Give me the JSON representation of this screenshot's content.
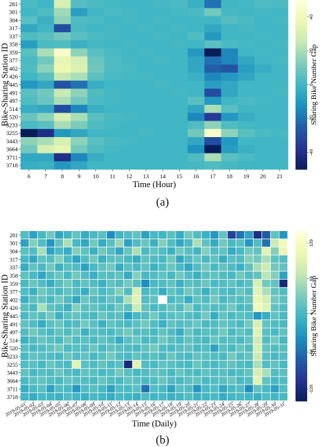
{
  "captions": {
    "a": "(a)",
    "b": "(b)"
  },
  "colormap": [
    "#081d58",
    "#253494",
    "#225ea8",
    "#1d91c0",
    "#41b6c4",
    "#7fcdbb",
    "#c7e9b4",
    "#edf8b1",
    "#ffffd9"
  ],
  "chart_data": [
    {
      "type": "heatmap",
      "id": "a",
      "xlabel": "Time (Hour)",
      "ylabel": "Bike-Sharing Station ID",
      "colorbar_label": "Sharing Bike Number Gap",
      "x": [
        "6",
        "7",
        "8",
        "9",
        "10",
        "11",
        "12",
        "13",
        "14",
        "15",
        "16",
        "17",
        "18",
        "19",
        "20",
        "21"
      ],
      "y": [
        "281",
        "301",
        "304",
        "317",
        "337",
        "358",
        "359",
        "377",
        "402",
        "426",
        "445",
        "491",
        "497",
        "514",
        "520",
        "3233",
        "3255",
        "3443",
        "3664",
        "3711",
        "3718"
      ],
      "vmin": -50,
      "vmax": 50,
      "colorbar_ticks": [
        40,
        20,
        0,
        -20,
        -40
      ],
      "values": [
        [
          2,
          0,
          30,
          4,
          2,
          1,
          0,
          0,
          1,
          2,
          -2,
          -20,
          0,
          1,
          3,
          2
        ],
        [
          0,
          3,
          18,
          -8,
          0,
          2,
          1,
          0,
          0,
          1,
          2,
          10,
          1,
          0,
          1,
          0
        ],
        [
          5,
          -2,
          15,
          3,
          2,
          0,
          1,
          0,
          1,
          0,
          0,
          0,
          4,
          2,
          0,
          1
        ],
        [
          -5,
          0,
          -30,
          2,
          0,
          1,
          0,
          1,
          0,
          1,
          0,
          -5,
          0,
          1,
          0,
          0
        ],
        [
          3,
          5,
          10,
          5,
          2,
          1,
          0,
          0,
          1,
          0,
          3,
          -10,
          0,
          0,
          1,
          0
        ],
        [
          -8,
          2,
          3,
          -2,
          1,
          0,
          1,
          0,
          0,
          1,
          0,
          5,
          2,
          1,
          0,
          1
        ],
        [
          5,
          20,
          45,
          15,
          5,
          2,
          0,
          1,
          0,
          0,
          -10,
          -50,
          -15,
          0,
          1,
          0
        ],
        [
          2,
          10,
          35,
          30,
          8,
          3,
          1,
          0,
          1,
          0,
          -5,
          -20,
          -15,
          -5,
          0,
          1
        ],
        [
          3,
          15,
          38,
          32,
          10,
          3,
          2,
          0,
          0,
          0,
          -5,
          -25,
          -28,
          -8,
          -3,
          0
        ],
        [
          0,
          5,
          25,
          20,
          5,
          2,
          1,
          1,
          0,
          0,
          -2,
          -15,
          -10,
          -5,
          0,
          0
        ],
        [
          -10,
          -5,
          -28,
          -20,
          -3,
          0,
          0,
          0,
          1,
          0,
          0,
          -8,
          -5,
          0,
          0,
          0
        ],
        [
          5,
          10,
          25,
          15,
          3,
          1,
          0,
          0,
          0,
          1,
          0,
          -30,
          -5,
          0,
          0,
          1
        ],
        [
          3,
          8,
          20,
          10,
          2,
          1,
          0,
          0,
          0,
          0,
          5,
          -10,
          0,
          2,
          1,
          0
        ],
        [
          -3,
          -5,
          -30,
          -15,
          -2,
          0,
          0,
          0,
          0,
          0,
          -5,
          20,
          5,
          0,
          0,
          0
        ],
        [
          8,
          15,
          30,
          20,
          5,
          2,
          1,
          0,
          0,
          0,
          -15,
          -35,
          -10,
          -3,
          0,
          0
        ],
        [
          2,
          5,
          20,
          12,
          3,
          1,
          0,
          0,
          0,
          0,
          3,
          15,
          3,
          1,
          0,
          0
        ],
        [
          -50,
          -40,
          -10,
          -5,
          0,
          0,
          0,
          1,
          0,
          0,
          10,
          45,
          15,
          5,
          2,
          1
        ],
        [
          15,
          20,
          30,
          15,
          5,
          2,
          1,
          0,
          0,
          0,
          -5,
          -30,
          -10,
          0,
          0,
          0
        ],
        [
          10,
          30,
          35,
          10,
          3,
          1,
          0,
          0,
          0,
          0,
          -12,
          -50,
          -8,
          -2,
          0,
          0
        ],
        [
          -5,
          -5,
          -40,
          -15,
          -3,
          0,
          0,
          0,
          0,
          0,
          3,
          20,
          5,
          2,
          0,
          0
        ],
        [
          -3,
          -2,
          -10,
          -5,
          0,
          0,
          0,
          0,
          0,
          0,
          1,
          3,
          1,
          0,
          0,
          0
        ]
      ]
    },
    {
      "type": "heatmap",
      "id": "b",
      "xlabel": "Time (Daily)",
      "ylabel": "Bike-Sharing Station ID",
      "colorbar_label": "Sharing Bike Number Gap",
      "x_ticklabels": [
        "2019-05-01",
        "2019-05-02",
        "2019-05-03",
        "2019-05-04",
        "2019-05-05",
        "2019-05-06",
        "2019-05-07",
        "2019-05-08",
        "2019-05-09",
        "2019-05-10",
        "2019-05-11",
        "2019-05-12",
        "2019-05-13",
        "2019-05-14",
        "2019-05-15",
        "2019-05-16",
        "2019-05-17",
        "2019-05-18",
        "2019-05-19",
        "2019-05-20",
        "2019-05-21",
        "2019-05-22",
        "2019-05-23",
        "2019-05-24",
        "2019-05-25",
        "2019-05-26",
        "2019-05-27",
        "2019-05-28",
        "2019-05-29",
        "2019-05-30",
        "2019-05-31"
      ],
      "n_days": 31,
      "y": [
        "281",
        "301",
        "304",
        "317",
        "337",
        "358",
        "359",
        "377",
        "402",
        "426",
        "445",
        "491",
        "497",
        "514",
        "520",
        "3233",
        "3255",
        "3443",
        "3664",
        "3711",
        "3718"
      ],
      "vmin": -150,
      "vmax": 150,
      "colorbar_ticks": [
        129,
        66,
        4,
        -64,
        -129
      ],
      "values": [
        [
          10,
          -20,
          5,
          30,
          -15,
          0,
          20,
          -10,
          5,
          15,
          -40,
          0,
          10,
          20,
          -20,
          5,
          0,
          15,
          -10,
          30,
          10,
          -5,
          -30,
          20,
          -100,
          -60,
          -20,
          -120,
          -80,
          20,
          -30
        ],
        [
          -20,
          40,
          10,
          -30,
          20,
          60,
          5,
          -15,
          30,
          -10,
          15,
          50,
          -20,
          10,
          25,
          -5,
          40,
          10,
          -15,
          5,
          60,
          20,
          -10,
          30,
          5,
          15,
          -30,
          10,
          -60,
          80,
          120
        ],
        [
          15,
          10,
          60,
          -20,
          5,
          -10,
          40,
          20,
          -5,
          30,
          10,
          -15,
          25,
          60,
          5,
          20,
          10,
          -5,
          30,
          15,
          0,
          40,
          10,
          20,
          -10,
          5,
          30,
          20,
          100,
          40,
          110
        ],
        [
          5,
          -15,
          20,
          10,
          40,
          5,
          -20,
          10,
          30,
          -5,
          15,
          20,
          5,
          -10,
          20,
          10,
          5,
          30,
          -15,
          10,
          25,
          5,
          20,
          -10,
          15,
          10,
          40,
          30,
          60,
          20,
          10
        ],
        [
          -10,
          20,
          5,
          30,
          -5,
          15,
          10,
          -20,
          5,
          20,
          30,
          -10,
          15,
          5,
          20,
          -5,
          10,
          25,
          5,
          -15,
          10,
          30,
          5,
          20,
          10,
          -5,
          20,
          60,
          80,
          30,
          20
        ],
        [
          20,
          5,
          -15,
          10,
          25,
          5,
          30,
          10,
          -5,
          15,
          10,
          20,
          -10,
          40,
          5,
          10,
          20,
          5,
          30,
          10,
          -5,
          15,
          20,
          10,
          5,
          30,
          10,
          20,
          70,
          40,
          -20
        ],
        [
          5,
          25,
          10,
          -10,
          15,
          30,
          5,
          20,
          10,
          -5,
          20,
          10,
          30,
          15,
          -40,
          5,
          10,
          20,
          -5,
          15,
          10,
          25,
          5,
          10,
          20,
          5,
          15,
          90,
          30,
          20,
          -130
        ],
        [
          10,
          -5,
          30,
          15,
          5,
          20,
          10,
          -10,
          25,
          5,
          15,
          40,
          10,
          90,
          5,
          15,
          -10,
          20,
          5,
          30,
          15,
          -5,
          20,
          10,
          5,
          25,
          10,
          100,
          60,
          20,
          10
        ],
        [
          -5,
          15,
          20,
          5,
          30,
          10,
          -15,
          25,
          10,
          5,
          20,
          10,
          60,
          100,
          10,
          20,
          150,
          5,
          15,
          -10,
          20,
          10,
          30,
          5,
          15,
          10,
          20,
          110,
          90,
          30,
          15
        ],
        [
          15,
          5,
          60,
          20,
          10,
          -5,
          40,
          15,
          20,
          10,
          5,
          30,
          15,
          80,
          20,
          5,
          10,
          25,
          10,
          40,
          5,
          20,
          10,
          15,
          30,
          5,
          10,
          120,
          100,
          20,
          10
        ],
        [
          5,
          20,
          10,
          30,
          -5,
          15,
          20,
          10,
          5,
          25,
          10,
          15,
          -20,
          5,
          10,
          30,
          5,
          15,
          20,
          10,
          5,
          30,
          -10,
          20,
          5,
          15,
          10,
          -30,
          -10,
          20,
          5
        ],
        [
          20,
          10,
          -10,
          15,
          25,
          5,
          10,
          30,
          15,
          -5,
          20,
          10,
          5,
          15,
          30,
          10,
          -5,
          20,
          10,
          15,
          25,
          5,
          10,
          20,
          15,
          5,
          30,
          90,
          20,
          10,
          5
        ],
        [
          10,
          30,
          15,
          5,
          20,
          10,
          25,
          -5,
          15,
          10,
          5,
          20,
          30,
          10,
          15,
          5,
          20,
          10,
          -10,
          25,
          5,
          15,
          10,
          30,
          5,
          20,
          10,
          100,
          15,
          5,
          20
        ],
        [
          -5,
          10,
          25,
          15,
          5,
          30,
          10,
          15,
          5,
          20,
          10,
          -10,
          15,
          25,
          5,
          10,
          30,
          15,
          5,
          20,
          10,
          5,
          25,
          10,
          15,
          5,
          20,
          80,
          10,
          30,
          5
        ],
        [
          15,
          5,
          10,
          20,
          30,
          5,
          15,
          10,
          25,
          5,
          20,
          15,
          10,
          5,
          20,
          30,
          10,
          5,
          15,
          20,
          5,
          10,
          -20,
          15,
          5,
          25,
          10,
          90,
          20,
          10,
          15
        ],
        [
          5,
          20,
          15,
          10,
          5,
          25,
          10,
          20,
          5,
          15,
          30,
          10,
          5,
          20,
          10,
          15,
          5,
          25,
          10,
          5,
          20,
          15,
          10,
          5,
          30,
          10,
          20,
          80,
          15,
          5,
          10
        ],
        [
          10,
          15,
          5,
          25,
          10,
          5,
          100,
          15,
          10,
          20,
          5,
          15,
          -130,
          100,
          10,
          5,
          20,
          15,
          10,
          5,
          25,
          10,
          5,
          15,
          20,
          10,
          5,
          60,
          10,
          20,
          5
        ],
        [
          20,
          5,
          15,
          10,
          25,
          10,
          5,
          20,
          15,
          5,
          10,
          30,
          15,
          5,
          10,
          20,
          15,
          5,
          25,
          10,
          5,
          20,
          10,
          15,
          5,
          10,
          20,
          90,
          60,
          10,
          15
        ],
        [
          5,
          15,
          20,
          10,
          5,
          20,
          15,
          10,
          5,
          25,
          10,
          5,
          20,
          15,
          5,
          10,
          25,
          10,
          5,
          15,
          20,
          5,
          10,
          15,
          25,
          5,
          10,
          100,
          20,
          5,
          10
        ],
        [
          -10,
          5,
          15,
          -20,
          10,
          5,
          -30,
          10,
          15,
          5,
          -20,
          10,
          5,
          15,
          -60,
          10,
          5,
          -20,
          15,
          10,
          -30,
          5,
          10,
          -15,
          5,
          10,
          -40,
          20,
          5,
          -20,
          10
        ],
        [
          0,
          -10,
          5,
          0,
          -5,
          10,
          0,
          -5,
          5,
          0,
          -10,
          5,
          0,
          -5,
          10,
          0,
          5,
          -5,
          0,
          10,
          -5,
          0,
          5,
          -10,
          0,
          5,
          0,
          -5,
          10,
          0,
          5
        ]
      ]
    }
  ]
}
